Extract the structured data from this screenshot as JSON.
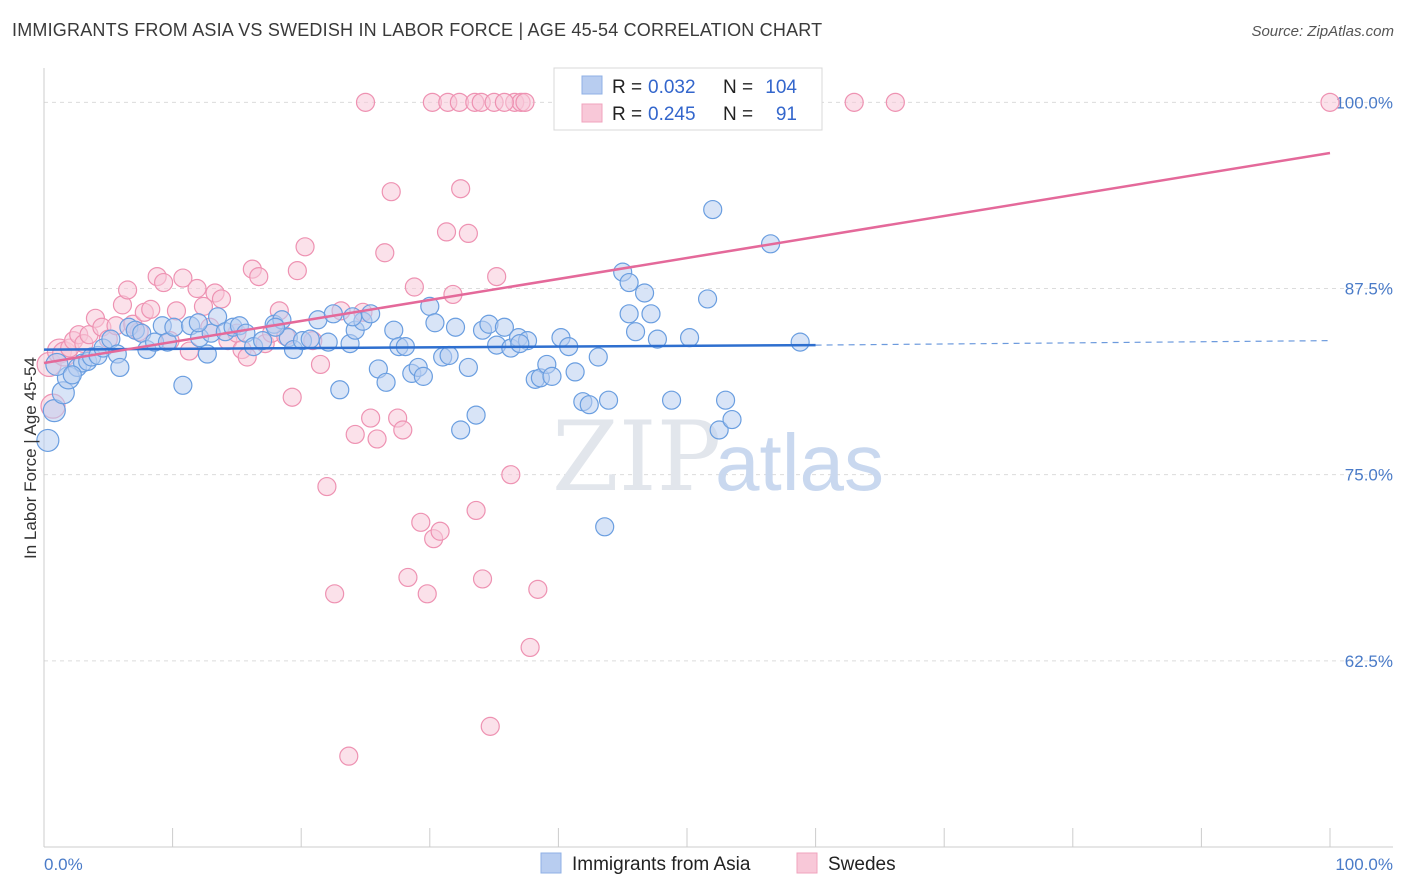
{
  "title": "IMMIGRANTS FROM ASIA VS SWEDISH IN LABOR FORCE | AGE 45-54 CORRELATION CHART",
  "source": "Source: ZipAtlas.com",
  "watermark": {
    "zip": "ZIP",
    "atlas": "atlas"
  },
  "legend_top": [
    {
      "r_label": "R =",
      "r_value": "0.032",
      "n_label": "N =",
      "n_value": "104",
      "color": "#9bbbe8"
    },
    {
      "r_label": "R =",
      "r_value": "0.245",
      "n_label": "N =",
      "n_value": "91",
      "color": "#f4aac2"
    }
  ],
  "colors": {
    "blue": "#6a9ee0",
    "blue_fill": "#b8cdf0",
    "blue_line": "#2e6fcf",
    "pink": "#ee92b2",
    "pink_fill": "#f8c8d8",
    "pink_line": "#e4699a",
    "grid": "#dcdcdc",
    "tick_text": "#4a7bc8"
  },
  "chart_data": {
    "type": "scatter",
    "xlabel": "",
    "ylabel": "In Labor Force | Age 45-54",
    "x_tick_labels": [
      "0.0%",
      "100.0%"
    ],
    "y_tick_labels": [
      "100.0%",
      "87.5%",
      "75.0%",
      "62.5%"
    ],
    "y_ticks": [
      100,
      87.5,
      75,
      62.5
    ],
    "xlim": [
      0,
      100
    ],
    "ylim": [
      50,
      101.5
    ],
    "grid": true,
    "series": [
      {
        "name": "Immigrants from Asia",
        "trend": {
          "x0": 0,
          "y0": 83.4,
          "x1": 60,
          "y1": 83.7,
          "dash_to_x": 100,
          "dash_to_y": 84.0
        },
        "points": [
          [
            0.3,
            77.3
          ],
          [
            0.8,
            79.3
          ],
          [
            1.5,
            80.5
          ],
          [
            1.9,
            81.5
          ],
          [
            2.6,
            82.2
          ],
          [
            3.0,
            82.5
          ],
          [
            3.4,
            82.6
          ],
          [
            3.7,
            82.9
          ],
          [
            4.2,
            83.0
          ],
          [
            4.6,
            83.5
          ],
          [
            5.2,
            84.1
          ],
          [
            5.7,
            83.1
          ],
          [
            5.9,
            82.2
          ],
          [
            6.6,
            84.9
          ],
          [
            7.1,
            84.7
          ],
          [
            7.6,
            84.5
          ],
          [
            8.0,
            83.4
          ],
          [
            8.6,
            83.9
          ],
          [
            9.2,
            85.0
          ],
          [
            9.6,
            83.9
          ],
          [
            10.1,
            84.9
          ],
          [
            10.8,
            81.0
          ],
          [
            11.4,
            85.0
          ],
          [
            12.1,
            84.2
          ],
          [
            12.7,
            83.1
          ],
          [
            13.0,
            84.5
          ],
          [
            13.5,
            85.6
          ],
          [
            14.1,
            84.6
          ],
          [
            14.7,
            84.9
          ],
          [
            15.2,
            85.0
          ],
          [
            15.7,
            84.5
          ],
          [
            16.3,
            83.6
          ],
          [
            17.0,
            84.0
          ],
          [
            17.9,
            85.1
          ],
          [
            18.5,
            85.4
          ],
          [
            19.0,
            84.2
          ],
          [
            19.4,
            83.4
          ],
          [
            20.1,
            84.0
          ],
          [
            20.7,
            84.1
          ],
          [
            21.3,
            85.4
          ],
          [
            22.1,
            83.9
          ],
          [
            22.5,
            85.8
          ],
          [
            23.0,
            80.7
          ],
          [
            23.8,
            83.8
          ],
          [
            24.2,
            84.7
          ],
          [
            24.8,
            85.3
          ],
          [
            25.4,
            85.8
          ],
          [
            26.0,
            82.1
          ],
          [
            26.6,
            81.2
          ],
          [
            27.2,
            84.7
          ],
          [
            27.6,
            83.6
          ],
          [
            28.1,
            83.6
          ],
          [
            28.6,
            81.8
          ],
          [
            29.1,
            82.2
          ],
          [
            29.5,
            81.6
          ],
          [
            30.0,
            86.3
          ],
          [
            30.4,
            85.2
          ],
          [
            31.0,
            82.9
          ],
          [
            31.5,
            83.0
          ],
          [
            32.0,
            84.9
          ],
          [
            32.4,
            78.0
          ],
          [
            33.0,
            82.2
          ],
          [
            33.6,
            79.0
          ],
          [
            34.1,
            84.7
          ],
          [
            34.6,
            85.1
          ],
          [
            35.2,
            83.7
          ],
          [
            35.8,
            84.9
          ],
          [
            36.3,
            83.5
          ],
          [
            36.9,
            84.2
          ],
          [
            37.6,
            84.0
          ],
          [
            38.2,
            81.4
          ],
          [
            38.6,
            81.5
          ],
          [
            39.1,
            82.4
          ],
          [
            39.5,
            81.6
          ],
          [
            40.2,
            84.2
          ],
          [
            40.8,
            83.6
          ],
          [
            41.3,
            81.9
          ],
          [
            41.9,
            79.9
          ],
          [
            42.4,
            79.7
          ],
          [
            43.1,
            82.9
          ],
          [
            43.6,
            71.5
          ],
          [
            43.9,
            80.0
          ],
          [
            45.0,
            88.6
          ],
          [
            45.5,
            85.8
          ],
          [
            46.0,
            84.6
          ],
          [
            46.7,
            87.2
          ],
          [
            47.2,
            85.8
          ],
          [
            47.7,
            84.1
          ],
          [
            48.8,
            80.0
          ],
          [
            50.2,
            84.2
          ],
          [
            51.6,
            86.8
          ],
          [
            52.0,
            92.8
          ],
          [
            52.5,
            78.0
          ],
          [
            53.0,
            80.0
          ],
          [
            53.5,
            78.7
          ],
          [
            56.5,
            90.5
          ],
          [
            58.8,
            83.9
          ],
          [
            1.0,
            82.4
          ],
          [
            2.2,
            81.7
          ],
          [
            12.0,
            85.2
          ],
          [
            18.0,
            84.9
          ],
          [
            24.0,
            85.6
          ],
          [
            37.0,
            83.8
          ],
          [
            45.5,
            87.9
          ]
        ]
      },
      {
        "name": "Swedes",
        "trend": {
          "x0": 0,
          "y0": 82.5,
          "x1": 100,
          "y1": 96.6
        },
        "points": [
          [
            0.4,
            82.4
          ],
          [
            0.7,
            79.6
          ],
          [
            1.2,
            83.3
          ],
          [
            1.6,
            83.1
          ],
          [
            2.0,
            83.5
          ],
          [
            2.3,
            84.0
          ],
          [
            2.7,
            84.4
          ],
          [
            3.1,
            83.8
          ],
          [
            3.5,
            84.4
          ],
          [
            4.0,
            85.5
          ],
          [
            4.5,
            84.9
          ],
          [
            5.0,
            84.1
          ],
          [
            5.6,
            85.0
          ],
          [
            6.1,
            86.4
          ],
          [
            6.5,
            87.4
          ],
          [
            6.9,
            85.1
          ],
          [
            7.4,
            84.6
          ],
          [
            7.8,
            85.9
          ],
          [
            8.3,
            86.1
          ],
          [
            8.8,
            88.3
          ],
          [
            9.3,
            87.9
          ],
          [
            9.8,
            84.0
          ],
          [
            10.3,
            86.0
          ],
          [
            10.8,
            88.2
          ],
          [
            11.3,
            83.3
          ],
          [
            11.9,
            87.5
          ],
          [
            12.4,
            86.3
          ],
          [
            12.9,
            84.9
          ],
          [
            13.3,
            87.2
          ],
          [
            13.8,
            86.8
          ],
          [
            14.3,
            84.0
          ],
          [
            15.0,
            84.5
          ],
          [
            15.4,
            83.4
          ],
          [
            15.8,
            82.9
          ],
          [
            16.2,
            88.8
          ],
          [
            16.7,
            88.3
          ],
          [
            17.2,
            83.8
          ],
          [
            17.7,
            84.5
          ],
          [
            18.3,
            86.0
          ],
          [
            18.8,
            84.3
          ],
          [
            19.3,
            80.2
          ],
          [
            19.7,
            88.7
          ],
          [
            20.3,
            90.3
          ],
          [
            20.9,
            84.0
          ],
          [
            21.5,
            82.4
          ],
          [
            22.0,
            74.2
          ],
          [
            22.6,
            67.0
          ],
          [
            23.1,
            86.0
          ],
          [
            23.7,
            56.1
          ],
          [
            24.2,
            77.7
          ],
          [
            24.8,
            85.9
          ],
          [
            25.4,
            78.8
          ],
          [
            25.9,
            77.4
          ],
          [
            26.5,
            89.9
          ],
          [
            27.0,
            94.0
          ],
          [
            27.5,
            78.8
          ],
          [
            27.9,
            78.0
          ],
          [
            28.3,
            68.1
          ],
          [
            28.8,
            87.6
          ],
          [
            29.3,
            71.8
          ],
          [
            29.8,
            67.0
          ],
          [
            30.3,
            70.7
          ],
          [
            30.8,
            71.2
          ],
          [
            31.3,
            91.3
          ],
          [
            31.8,
            87.1
          ],
          [
            32.4,
            94.2
          ],
          [
            33.0,
            91.2
          ],
          [
            33.6,
            72.6
          ],
          [
            34.1,
            68.0
          ],
          [
            34.7,
            58.1
          ],
          [
            35.2,
            88.3
          ],
          [
            36.3,
            75.0
          ],
          [
            37.8,
            63.4
          ],
          [
            38.4,
            67.3
          ],
          [
            25.0,
            100.0
          ],
          [
            30.2,
            100.0
          ],
          [
            31.4,
            100.0
          ],
          [
            32.3,
            100.0
          ],
          [
            33.5,
            100.0
          ],
          [
            34.0,
            100.0
          ],
          [
            35.0,
            100.0
          ],
          [
            36.6,
            100.0
          ],
          [
            37.1,
            100.0
          ],
          [
            37.4,
            100.0
          ],
          [
            42.2,
            100.0
          ],
          [
            42.8,
            100.0
          ],
          [
            53.4,
            100.0
          ],
          [
            63.0,
            100.0
          ],
          [
            66.2,
            100.0
          ],
          [
            100.0,
            100.0
          ],
          [
            35.8,
            100.0
          ]
        ]
      }
    ]
  },
  "bottom_legend": [
    {
      "label": "Immigrants from Asia"
    },
    {
      "label": "Swedes"
    }
  ]
}
